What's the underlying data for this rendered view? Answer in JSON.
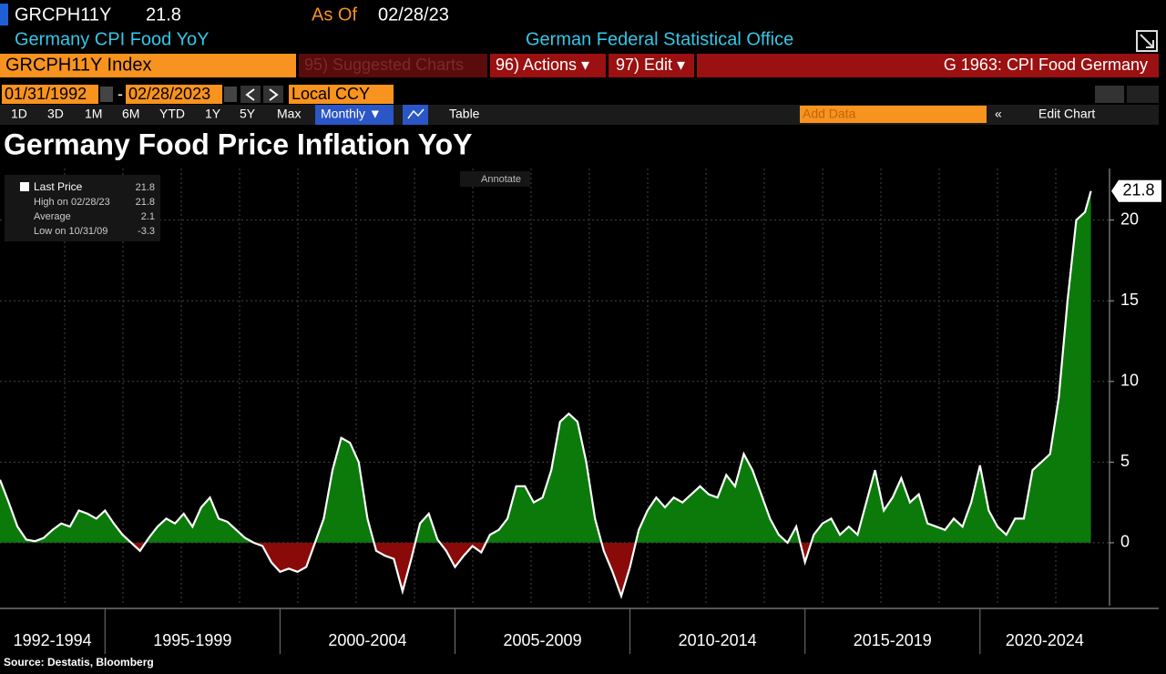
{
  "ui": {
    "ticker": "GRCPH11Y",
    "last": 21.8,
    "as_of_label": "As Of",
    "as_of": "02/28/23",
    "description": "Germany CPI Food YoY",
    "publisher": "German Federal Statistical Office",
    "security": "GRCPH11Y Index",
    "suggested": "95) Suggested Charts",
    "actions": "96) Actions ▾",
    "edit": "97) Edit ▾",
    "chart_name": "G 1963: CPI Food Germany",
    "start_date": "01/31/1992",
    "end_date": "02/28/2023",
    "currency": "Local CCY",
    "periods": [
      "1D",
      "3D",
      "1M",
      "6M",
      "YTD",
      "1Y",
      "5Y",
      "Max"
    ],
    "frequency": "Monthly ▼",
    "table": "Table",
    "add_data": "Add Data",
    "edit_chart": "Edit Chart",
    "annotate": "Annotate"
  },
  "chart_data": {
    "type": "area",
    "title": "Germany Food Price Inflation YoY",
    "source": "Source: Destatis, Bloomberg",
    "x": [
      1992.0,
      1992.25,
      1992.5,
      1992.75,
      1993.0,
      1993.25,
      1993.5,
      1993.75,
      1994.0,
      1994.25,
      1994.5,
      1994.75,
      1995.0,
      1995.25,
      1995.5,
      1995.75,
      1996.0,
      1996.25,
      1996.5,
      1996.75,
      1997.0,
      1997.25,
      1997.5,
      1997.75,
      1998.0,
      1998.25,
      1998.5,
      1998.75,
      1999.0,
      1999.25,
      1999.5,
      1999.75,
      2000.0,
      2000.25,
      2000.5,
      2000.75,
      2001.0,
      2001.25,
      2001.5,
      2001.75,
      2002.0,
      2002.25,
      2002.5,
      2002.75,
      2003.0,
      2003.25,
      2003.5,
      2003.75,
      2004.0,
      2004.25,
      2004.5,
      2004.75,
      2005.0,
      2005.25,
      2005.5,
      2005.75,
      2006.0,
      2006.25,
      2006.5,
      2006.75,
      2007.0,
      2007.25,
      2007.5,
      2007.75,
      2008.0,
      2008.25,
      2008.5,
      2008.75,
      2009.0,
      2009.25,
      2009.5,
      2009.75,
      2010.0,
      2010.25,
      2010.5,
      2010.75,
      2011.0,
      2011.25,
      2011.5,
      2011.75,
      2012.0,
      2012.25,
      2012.5,
      2012.75,
      2013.0,
      2013.25,
      2013.5,
      2013.75,
      2014.0,
      2014.25,
      2014.5,
      2014.75,
      2015.0,
      2015.25,
      2015.5,
      2015.75,
      2016.0,
      2016.25,
      2016.5,
      2016.75,
      2017.0,
      2017.25,
      2017.5,
      2017.75,
      2018.0,
      2018.25,
      2018.5,
      2018.75,
      2019.0,
      2019.25,
      2019.5,
      2019.75,
      2020.0,
      2020.25,
      2020.5,
      2020.75,
      2021.0,
      2021.25,
      2021.5,
      2021.75,
      2022.0,
      2022.25,
      2022.5,
      2022.75,
      2023.0,
      2023.17
    ],
    "values": [
      3.9,
      2.5,
      1.0,
      0.2,
      0.1,
      0.3,
      0.8,
      1.2,
      1.0,
      2.0,
      1.8,
      1.5,
      2.0,
      1.2,
      0.5,
      0.0,
      -0.5,
      0.3,
      1.0,
      1.5,
      1.2,
      1.8,
      1.0,
      2.2,
      2.8,
      1.5,
      1.3,
      0.8,
      0.3,
      0.0,
      -0.2,
      -1.2,
      -1.8,
      -1.6,
      -1.8,
      -1.5,
      0.0,
      1.5,
      4.5,
      6.5,
      6.2,
      5.0,
      1.5,
      -0.5,
      -0.8,
      -1.0,
      -3.0,
      -1.0,
      1.2,
      1.8,
      0.2,
      -0.5,
      -1.5,
      -0.8,
      -0.2,
      -0.6,
      0.5,
      0.8,
      1.5,
      3.5,
      3.5,
      2.5,
      2.8,
      4.5,
      7.5,
      8.0,
      7.5,
      5.0,
      1.5,
      -0.5,
      -1.8,
      -3.3,
      -1.5,
      0.8,
      2.0,
      2.8,
      2.2,
      2.8,
      2.5,
      3.0,
      3.5,
      3.0,
      2.8,
      4.2,
      3.5,
      5.5,
      4.5,
      3.0,
      1.5,
      0.5,
      0.0,
      1.0,
      -1.2,
      0.5,
      1.2,
      1.5,
      0.5,
      1.0,
      0.5,
      2.5,
      4.5,
      2.0,
      2.8,
      4.0,
      2.5,
      3.0,
      1.2,
      1.0,
      0.8,
      1.5,
      1.0,
      2.5,
      4.8,
      2.0,
      1.0,
      0.5,
      1.5,
      1.5,
      4.5,
      5.0,
      5.5,
      9.0,
      15.0,
      20.0,
      20.5,
      21.8
    ],
    "color_positive": "#0b7a0b",
    "color_negative": "#8a0a0a",
    "line_color": "#ffffff",
    "xlim": [
      1992.0,
      2023.7
    ],
    "ylim": [
      -3.9,
      23.2
    ],
    "yticks": [
      0,
      5,
      10,
      15,
      20
    ],
    "grid": true,
    "x_periods": [
      {
        "label": "1992-1994",
        "start": 1992,
        "end": 1995
      },
      {
        "label": "1995-1999",
        "start": 1995,
        "end": 2000
      },
      {
        "label": "2000-2004",
        "start": 2000,
        "end": 2005
      },
      {
        "label": "2005-2009",
        "start": 2005,
        "end": 2010
      },
      {
        "label": "2010-2014",
        "start": 2010,
        "end": 2015
      },
      {
        "label": "2015-2019",
        "start": 2015,
        "end": 2020
      },
      {
        "label": "2020-2024",
        "start": 2020,
        "end": 2023.7
      }
    ],
    "legend_stats": [
      {
        "label": "Last Price",
        "value": 21.8
      },
      {
        "label": "High on 02/28/23",
        "value": 21.8
      },
      {
        "label": "Average",
        "value": 2.1
      },
      {
        "label": "Low on 10/31/09",
        "value": -3.3
      }
    ]
  }
}
